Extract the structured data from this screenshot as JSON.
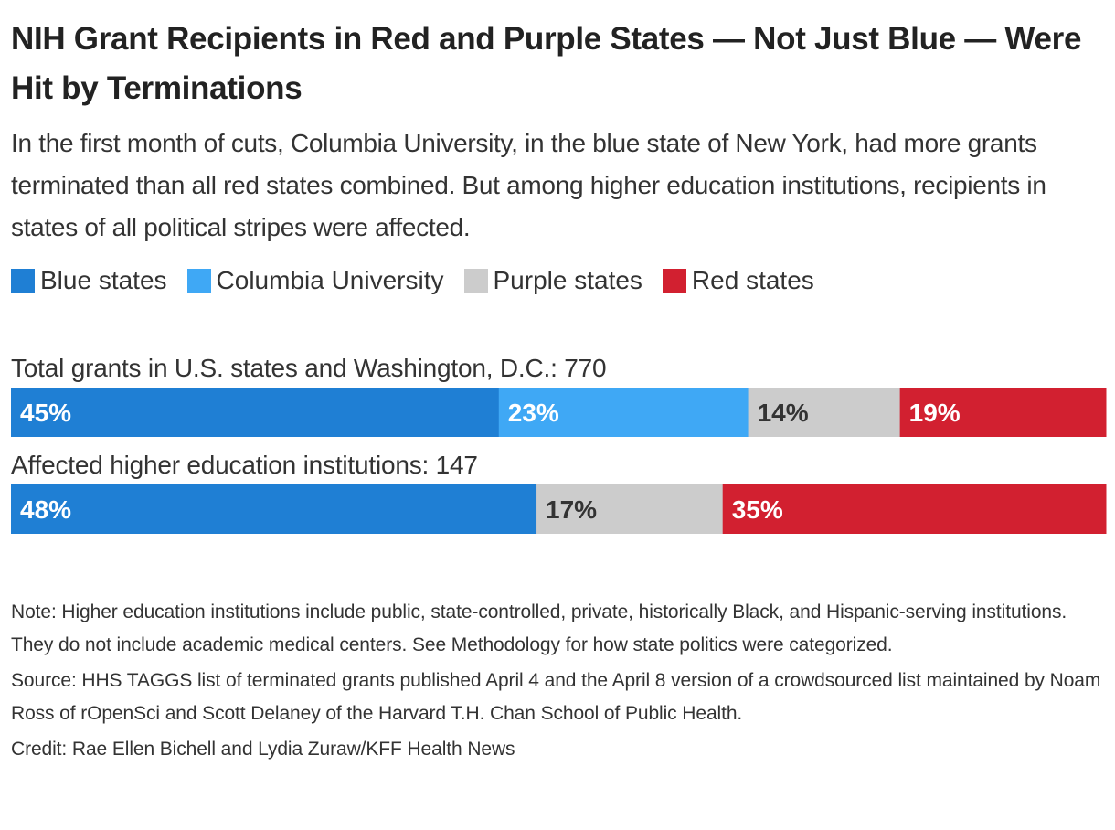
{
  "title": "NIH Grant Recipients in Red and Purple States — Not Just Blue — Were Hit by Terminations",
  "subtitle": "In the first month of cuts, Columbia University, in the blue state of New York, had more grants terminated than all red states combined. But among higher education institutions, recipients in states of all political stripes were affected.",
  "legend": [
    {
      "label": "Blue states",
      "color": "#1f7fd4"
    },
    {
      "label": "Columbia University",
      "color": "#3fa8f5"
    },
    {
      "label": "Purple states",
      "color": "#cccccc"
    },
    {
      "label": "Red states",
      "color": "#d22030"
    }
  ],
  "chart_data": {
    "type": "bar",
    "orientation": "horizontal-stacked-100",
    "rows": [
      {
        "label": "Total grants in U.S. states and Washington, D.C.: 770",
        "segments": [
          {
            "series": "Blue states",
            "value": 45,
            "text": "45%",
            "color": "#1f7fd4",
            "text_color": "#ffffff"
          },
          {
            "series": "Columbia University",
            "value": 23,
            "text": "23%",
            "color": "#3fa8f5",
            "text_color": "#ffffff"
          },
          {
            "series": "Purple states",
            "value": 14,
            "text": "14%",
            "color": "#cccccc",
            "text_color": "#333333"
          },
          {
            "series": "Red states",
            "value": 19,
            "text": "19%",
            "color": "#d22030",
            "text_color": "#ffffff"
          }
        ]
      },
      {
        "label": "Affected higher education institutions: 147",
        "segments": [
          {
            "series": "Blue states",
            "value": 48,
            "text": "48%",
            "color": "#1f7fd4",
            "text_color": "#ffffff"
          },
          {
            "series": "Purple states",
            "value": 17,
            "text": "17%",
            "color": "#cccccc",
            "text_color": "#333333"
          },
          {
            "series": "Red states",
            "value": 35,
            "text": "35%",
            "color": "#d22030",
            "text_color": "#ffffff"
          }
        ]
      }
    ]
  },
  "notes": {
    "note": "Note: Higher education institutions include public, state-controlled, private, historically Black, and Hispanic-serving institutions. They do not include academic medical centers. See Methodology for how state politics were categorized.",
    "source": "Source: HHS TAGGS list of terminated grants published April 4 and the April 8 version of a crowdsourced list maintained by Noam Ross of rOpenSci and Scott Delaney of the Harvard T.H. Chan School of Public Health.",
    "credit": "Credit: Rae Ellen Bichell and Lydia Zuraw/KFF Health News"
  }
}
